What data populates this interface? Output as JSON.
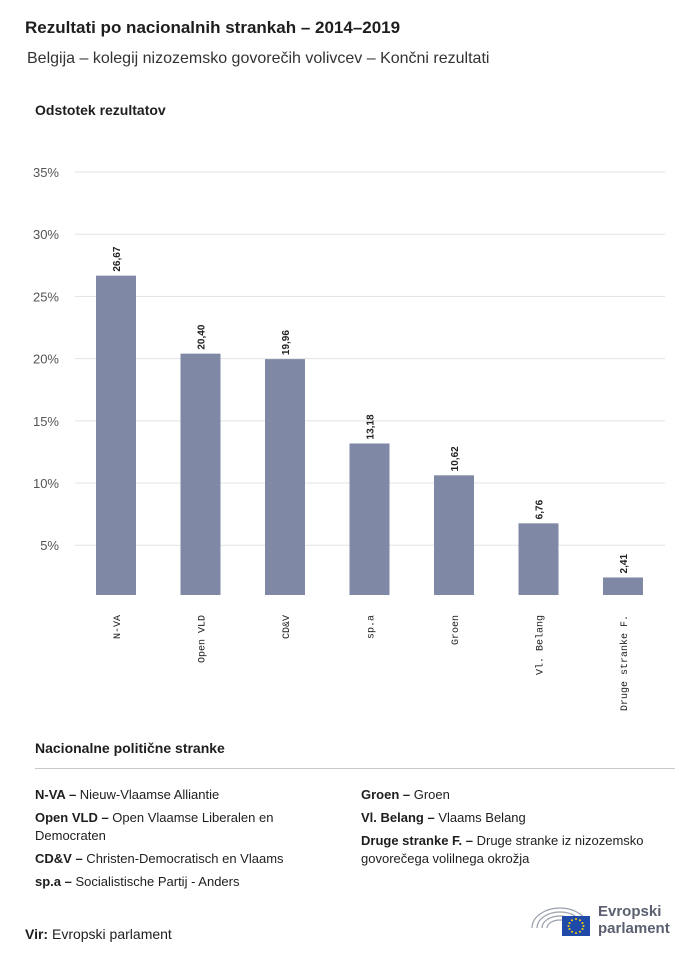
{
  "header": {
    "title": "Rezultati po nacionalnih strankah – 2014–2019",
    "subtitle": "Belgija – kolegij nizozemsko govorečih volivcev – Končni rezultati"
  },
  "chart_data": {
    "type": "bar",
    "ylabel": "Odstotek rezultatov",
    "categories": [
      "N-VA",
      "Open VLD",
      "CD&V",
      "sp.a",
      "Groen",
      "Vl. Belang",
      "Druge stranke F."
    ],
    "values": [
      26.67,
      20.4,
      19.96,
      13.18,
      10.62,
      6.76,
      2.41
    ],
    "value_labels": [
      "26,67",
      "20,40",
      "19,96",
      "13,18",
      "10,62",
      "6,76",
      "2,41"
    ],
    "yticks": [
      5,
      10,
      15,
      20,
      25,
      30,
      35
    ],
    "ytick_labels": [
      "5%",
      "10%",
      "15%",
      "20%",
      "25%",
      "30%",
      "35%"
    ],
    "ylim": [
      1,
      35
    ],
    "grid": true,
    "bar_color": "#7f88a4"
  },
  "legend": {
    "title": "Nacionalne politične stranke",
    "left": [
      {
        "abbr": "N-VA –",
        "name": "Nieuw-Vlaamse Alliantie"
      },
      {
        "abbr": "Open VLD –",
        "name": "Open Vlaamse Liberalen en Democraten"
      },
      {
        "abbr": "CD&V –",
        "name": "Christen-Democratisch en Vlaams"
      },
      {
        "abbr": "sp.a –",
        "name": "Socialistische Partij - Anders"
      }
    ],
    "right": [
      {
        "abbr": "Groen –",
        "name": "Groen"
      },
      {
        "abbr": "Vl. Belang –",
        "name": "Vlaams Belang"
      },
      {
        "abbr": "Druge stranke F. –",
        "name": "Druge stranke iz nizozemsko govorečega volilnega okrožja"
      }
    ]
  },
  "footer": {
    "source_label": "Vir:",
    "source_value": "Evropski parlament",
    "logo_line1": "Evropski",
    "logo_line2": "parlament"
  }
}
